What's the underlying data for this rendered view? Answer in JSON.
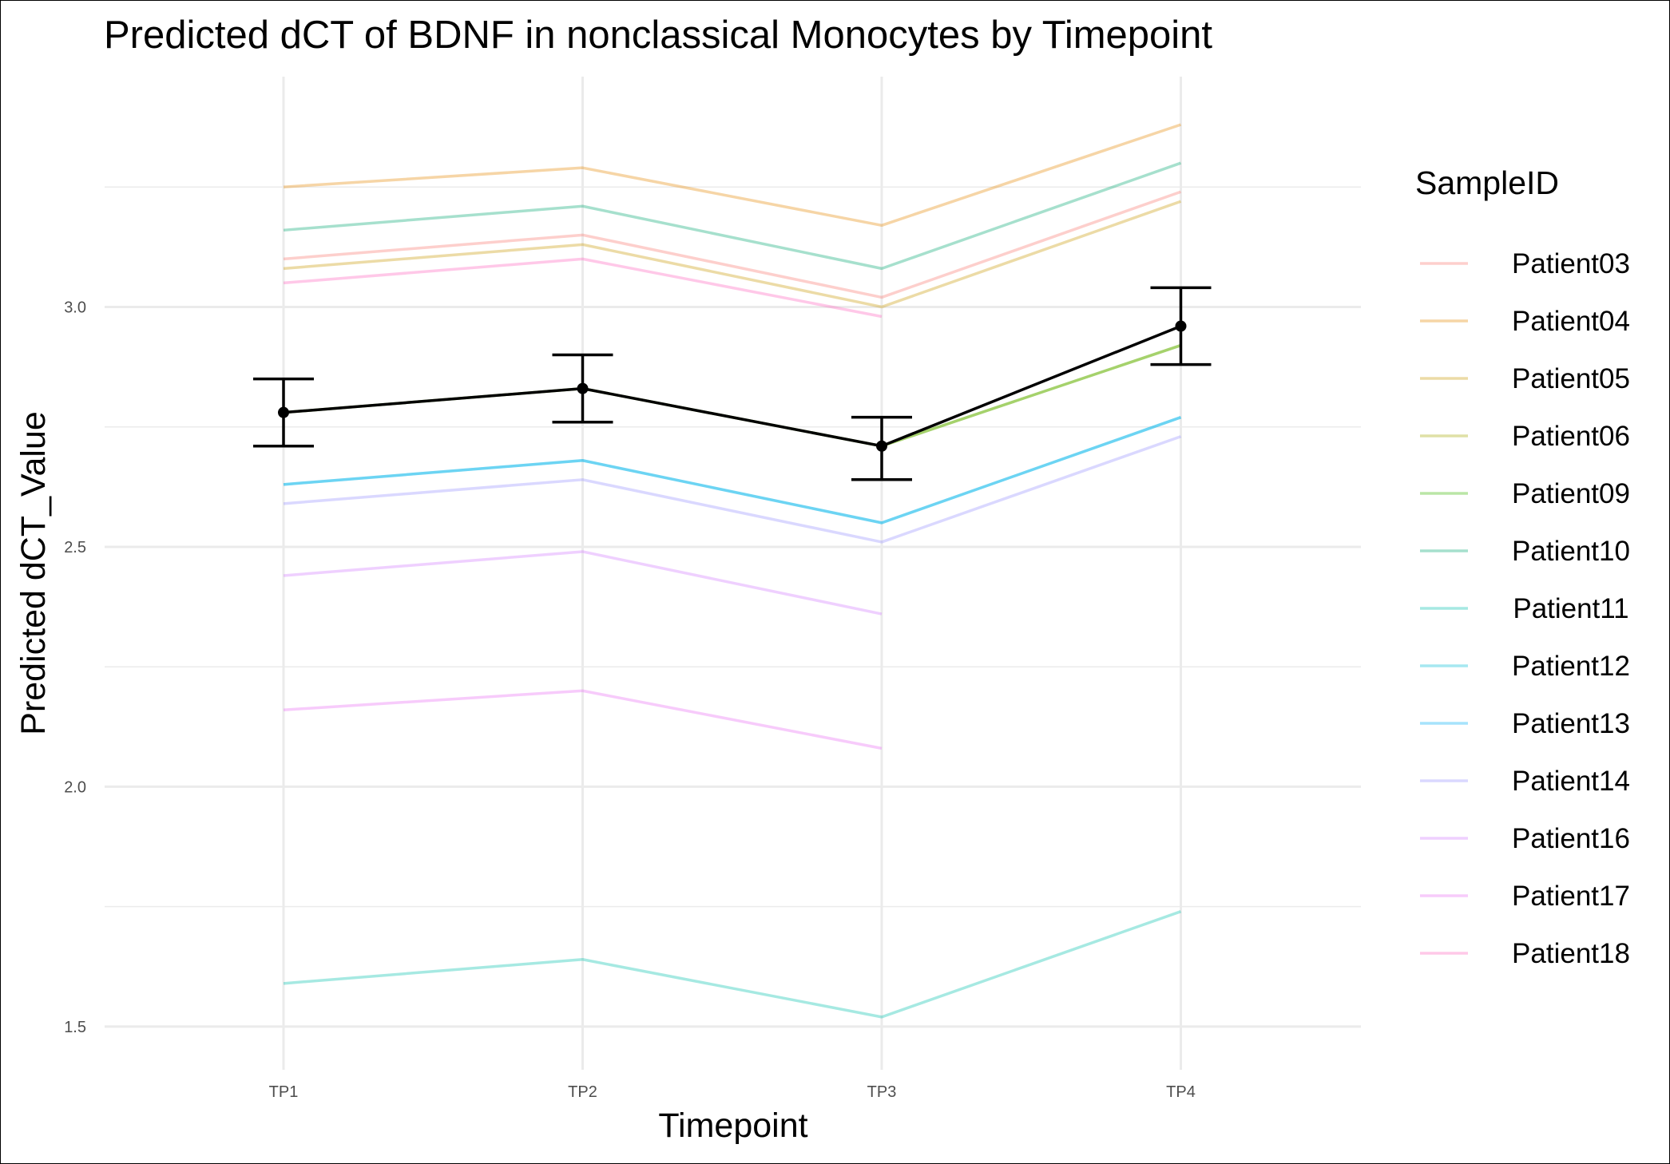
{
  "chart_data": {
    "type": "line",
    "title": "Predicted dCT of  BDNF in  nonclassical  Monocytes by Timepoint",
    "xlabel": "Timepoint",
    "ylabel": "Predicted dCT_Value",
    "categories": [
      "TP1",
      "TP2",
      "TP3",
      "TP4"
    ],
    "ylim": [
      1.41,
      3.48
    ],
    "yticks": [
      "1.5",
      "2.0",
      "2.5",
      "3.0"
    ],
    "grid": true,
    "legend": {
      "title": "SampleID",
      "position": "right"
    },
    "series": [
      {
        "name": "Patient03",
        "color": "#F8766D",
        "values": [
          3.1,
          3.15,
          3.02,
          3.24
        ]
      },
      {
        "name": "Patient04",
        "color": "#E58700",
        "values": [
          3.25,
          3.29,
          3.17,
          3.38
        ]
      },
      {
        "name": "Patient05",
        "color": "#C99800",
        "values": [
          3.08,
          3.13,
          3.0,
          3.22
        ]
      },
      {
        "name": "Patient06",
        "color": "#A3A500",
        "values": [
          2.78,
          2.83,
          2.71,
          2.92
        ]
      },
      {
        "name": "Patient09",
        "color": "#39B600",
        "values": [
          2.78,
          2.83,
          2.71,
          2.92
        ]
      },
      {
        "name": "Patient10",
        "color": "#00A670",
        "values": [
          3.16,
          3.21,
          3.08,
          3.3
        ]
      },
      {
        "name": "Patient11",
        "color": "#00BFAB",
        "values": [
          1.59,
          1.64,
          1.52,
          1.74
        ]
      },
      {
        "name": "Patient12",
        "color": "#00BCD8",
        "values": [
          2.63,
          2.68,
          2.55,
          2.77
        ]
      },
      {
        "name": "Patient13",
        "color": "#00B0F6",
        "values": [
          2.63,
          2.68,
          2.55,
          2.77
        ]
      },
      {
        "name": "Patient14",
        "color": "#9590FF",
        "values": [
          2.59,
          2.64,
          2.51,
          2.73
        ]
      },
      {
        "name": "Patient16",
        "color": "#D078FF",
        "values": [
          2.44,
          2.49,
          2.36,
          null
        ]
      },
      {
        "name": "Patient17",
        "color": "#E76BF3",
        "values": [
          2.16,
          2.2,
          2.08,
          null
        ]
      },
      {
        "name": "Patient18",
        "color": "#FF62BC",
        "values": [
          3.05,
          3.1,
          2.98,
          null
        ]
      }
    ],
    "mean": {
      "values": [
        2.78,
        2.83,
        2.71,
        2.96
      ],
      "error_low": [
        2.71,
        2.76,
        2.64,
        2.88
      ],
      "error_high": [
        2.85,
        2.9,
        2.77,
        3.04
      ],
      "color": "#000000"
    }
  }
}
